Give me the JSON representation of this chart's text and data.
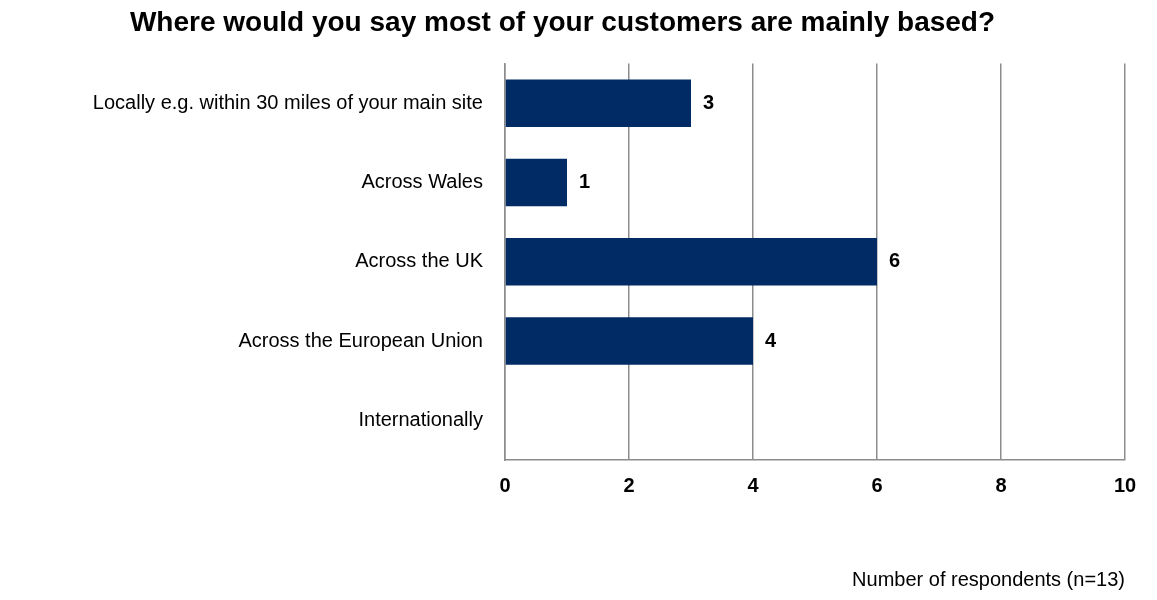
{
  "chart_data": {
    "type": "bar",
    "orientation": "horizontal",
    "title": "Where would you say most of your customers are mainly based?",
    "xlabel": "Number of respondents (n=13)",
    "categories": [
      "Locally e.g. within 30 miles of your main site",
      "Across Wales",
      "Across the UK",
      "Across the European Union",
      "Internationally"
    ],
    "values": [
      3,
      1,
      6,
      4,
      0
    ],
    "value_labels": [
      "3",
      "1",
      "6",
      "4",
      null
    ],
    "color": "#002b65",
    "xlim": [
      0,
      10
    ],
    "xticks": [
      0,
      2,
      4,
      6,
      8,
      10
    ],
    "grid": "x",
    "legend": false
  }
}
